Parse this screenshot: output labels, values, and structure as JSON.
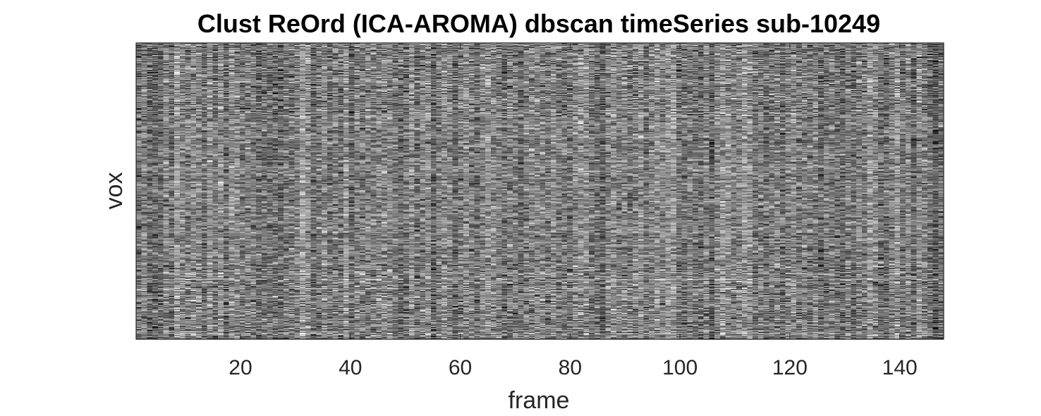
{
  "chart_data": {
    "type": "heatmap",
    "title": "Clust ReOrd (ICA-AROMA) dbscan timeSeries sub-10249",
    "xlabel": "frame",
    "ylabel": "vox",
    "xlim": [
      1,
      148
    ],
    "x_ticks": [
      20,
      40,
      60,
      80,
      100,
      120,
      140
    ],
    "y_ticks": [],
    "colormap": "gray",
    "n_frames": 148,
    "grid": false
  }
}
